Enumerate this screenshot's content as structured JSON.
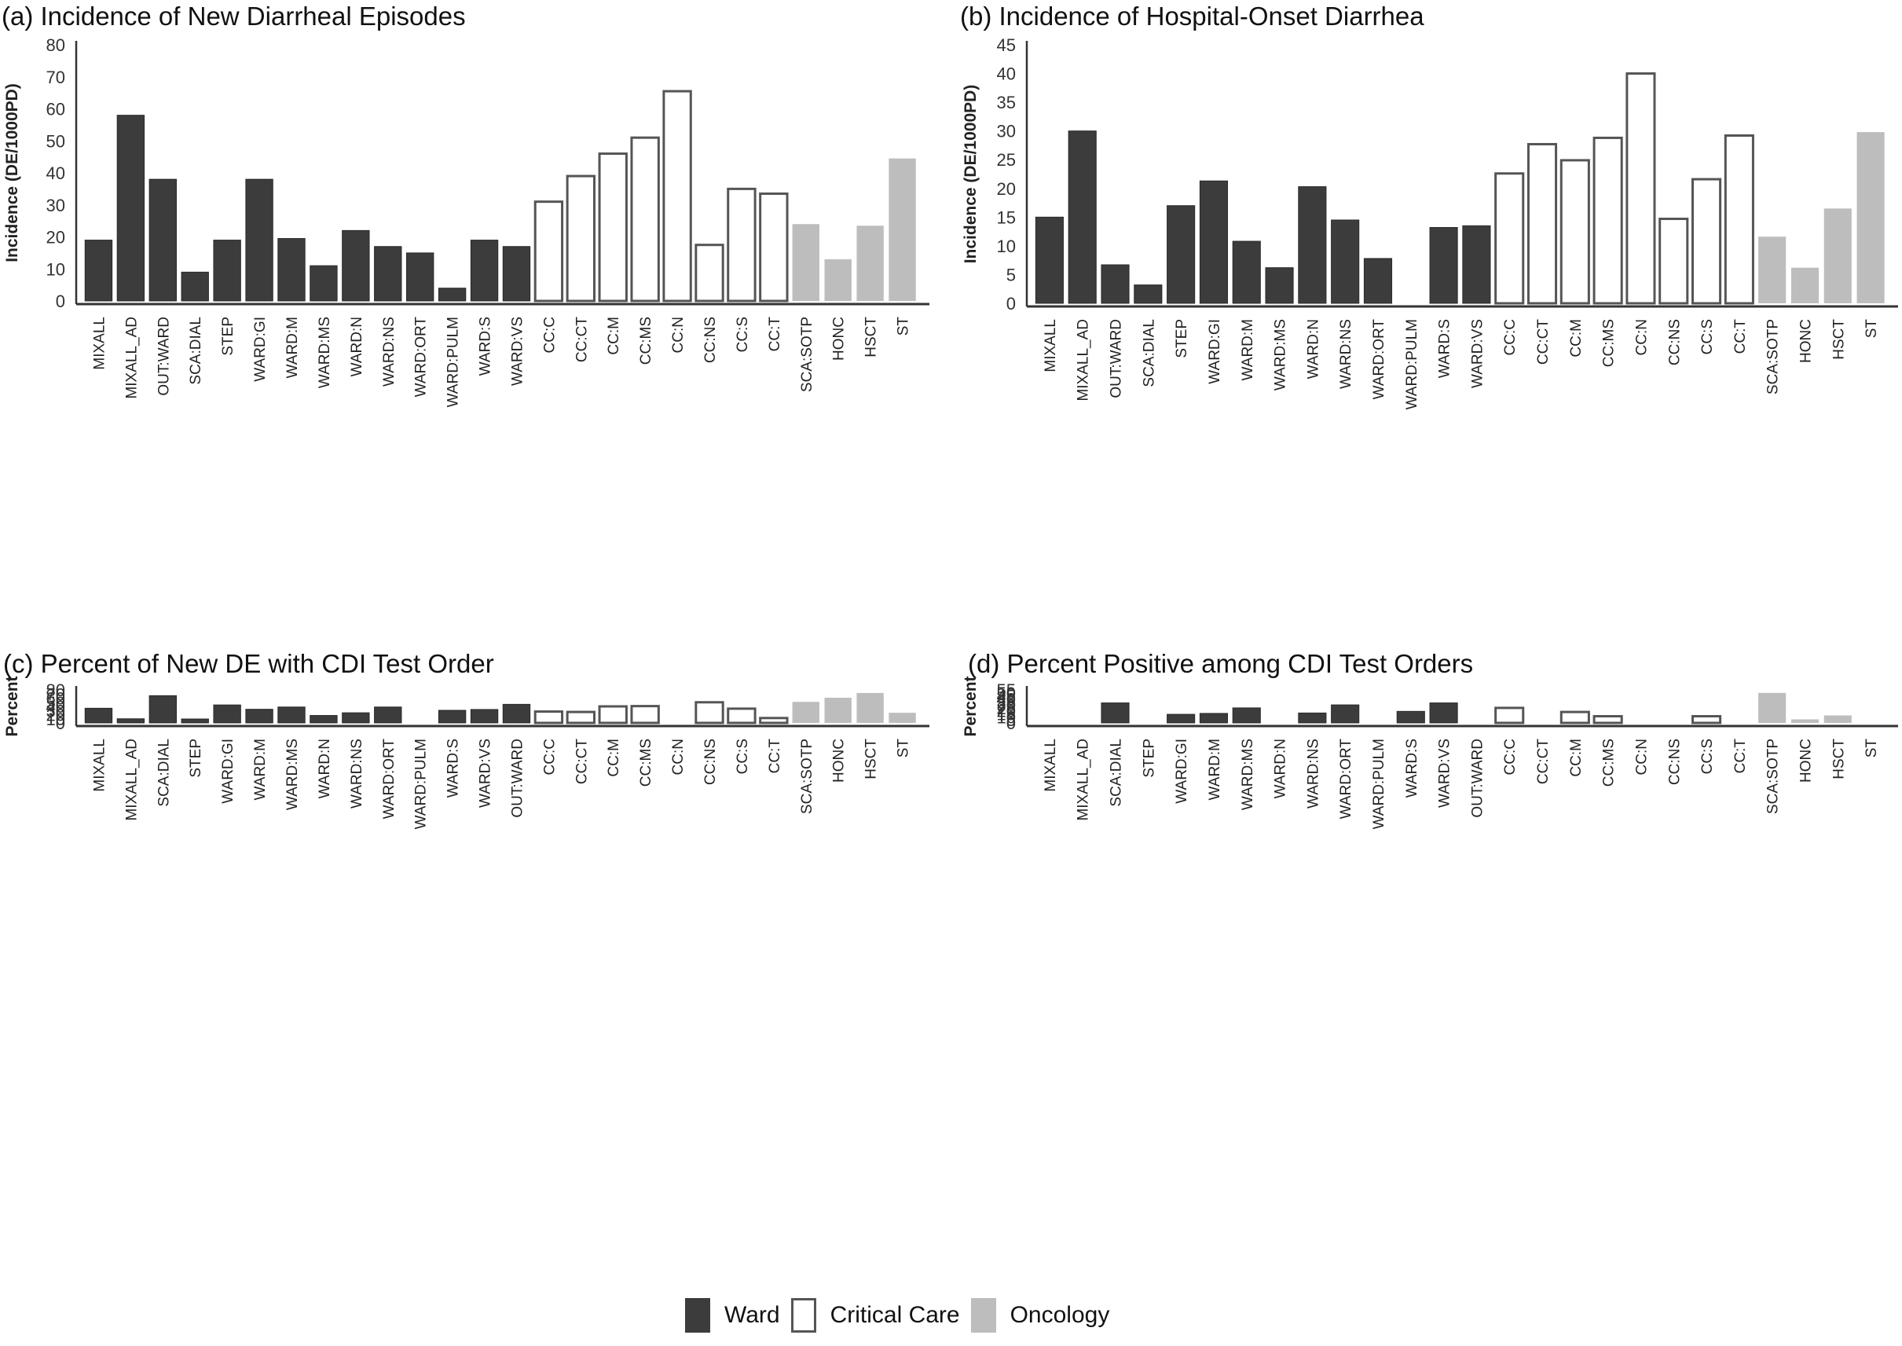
{
  "legend": [
    {
      "label": "Ward",
      "group": "ward"
    },
    {
      "label": "Critical Care",
      "group": "cc"
    },
    {
      "label": "Oncology",
      "group": "onc"
    }
  ],
  "colors": {
    "ward": "#3c3c3c",
    "cc": "#ffffff",
    "cc_stroke": "#555555",
    "onc": "#bdbdbd",
    "axis": "#333333"
  },
  "chart_data": [
    {
      "id": "a",
      "type": "bar",
      "title": "(a) Incidence of New Diarrheal Episodes",
      "xlabel": "",
      "ylabel": "Incidence (DE/1000PD)",
      "ylim": [
        0,
        80
      ],
      "yticks": [
        0,
        10,
        20,
        30,
        40,
        50,
        60,
        70,
        80
      ],
      "grid": false,
      "categories": [
        "MIXALL",
        "MIXALL_AD",
        "OUT:WARD",
        "SCA:DIAL",
        "STEP",
        "WARD:GI",
        "WARD:M",
        "WARD:MS",
        "WARD:N",
        "WARD:NS",
        "WARD:ORT",
        "WARD:PULM",
        "WARD:S",
        "WARD:VS",
        "CC:C",
        "CC:CT",
        "CC:M",
        "CC:MS",
        "CC:N",
        "CC:NS",
        "CC:S",
        "CC:T",
        "SCA:SOTP",
        "HONC",
        "HSCT",
        "ST"
      ],
      "groups": [
        "ward",
        "ward",
        "ward",
        "ward",
        "ward",
        "ward",
        "ward",
        "ward",
        "ward",
        "ward",
        "ward",
        "ward",
        "ward",
        "ward",
        "cc",
        "cc",
        "cc",
        "cc",
        "cc",
        "cc",
        "cc",
        "cc",
        "onc",
        "onc",
        "onc",
        "onc"
      ],
      "values": [
        19,
        58,
        38,
        9,
        19,
        38,
        19.5,
        11,
        22,
        17,
        15,
        4,
        19,
        17,
        31,
        39,
        46,
        51,
        65.5,
        17.5,
        35,
        33.5,
        24,
        13,
        23.5,
        44.5
      ]
    },
    {
      "id": "b",
      "type": "bar",
      "title": "(b) Incidence of Hospital-Onset Diarrhea",
      "xlabel": "",
      "ylabel": "Incidence (DE/1000PD)",
      "ylim": [
        0,
        45
      ],
      "yticks": [
        0,
        5,
        10,
        15,
        20,
        25,
        30,
        35,
        40,
        45
      ],
      "grid": false,
      "categories": [
        "MIXALL",
        "MIXALL_AD",
        "OUT:WARD",
        "SCA:DIAL",
        "STEP",
        "WARD:GI",
        "WARD:M",
        "WARD:MS",
        "WARD:N",
        "WARD:NS",
        "WARD:ORT",
        "WARD:PULM",
        "WARD:S",
        "WARD:VS",
        "CC:C",
        "CC:CT",
        "CC:M",
        "CC:MS",
        "CC:N",
        "CC:NS",
        "CC:S",
        "CC:T",
        "SCA:SOTP",
        "HONC",
        "HSCT",
        "ST"
      ],
      "groups": [
        "ward",
        "ward",
        "ward",
        "ward",
        "ward",
        "ward",
        "ward",
        "ward",
        "ward",
        "ward",
        "ward",
        "ward",
        "ward",
        "ward",
        "cc",
        "cc",
        "cc",
        "cc",
        "cc",
        "cc",
        "cc",
        "cc",
        "onc",
        "onc",
        "onc",
        "onc"
      ],
      "values": [
        15,
        30,
        6.7,
        3.2,
        17,
        21.3,
        10.8,
        6.2,
        20.3,
        14.5,
        7.8,
        0,
        13.2,
        13.5,
        22.6,
        27.7,
        24.9,
        28.8,
        40,
        14.7,
        21.6,
        29.2,
        11.6,
        6.2,
        16.5,
        29.8
      ]
    },
    {
      "id": "c",
      "type": "bar",
      "title": "(c) Percent of New DE with CDI Test Order",
      "xlabel": "",
      "ylabel": "Percent",
      "ylim": [
        0,
        80
      ],
      "yticks": [
        0,
        10,
        20,
        30,
        40,
        50,
        60,
        70,
        80
      ],
      "grid": false,
      "categories": [
        "MIXALL",
        "MIXALL_AD",
        "SCA:DIAL",
        "STEP",
        "WARD:GI",
        "WARD:M",
        "WARD:MS",
        "WARD:N",
        "WARD:NS",
        "WARD:ORT",
        "WARD:PULM",
        "WARD:S",
        "WARD:VS",
        "OUT:WARD",
        "CC:C",
        "CC:CT",
        "CC:M",
        "CC:MS",
        "CC:N",
        "CC:NS",
        "CC:S",
        "CC:T",
        "SCA:SOTP",
        "HONC",
        "HSCT",
        "ST"
      ],
      "groups": [
        "ward",
        "ward",
        "ward",
        "ward",
        "ward",
        "ward",
        "ward",
        "ward",
        "ward",
        "ward",
        "ward",
        "ward",
        "ward",
        "ward",
        "cc",
        "cc",
        "cc",
        "cc",
        "cc",
        "cc",
        "cc",
        "cc",
        "onc",
        "onc",
        "onc",
        "onc"
      ],
      "values": [
        35.5,
        10,
        66,
        9.5,
        43.5,
        33,
        38.5,
        18,
        24.5,
        38.5,
        0,
        30.5,
        32.5,
        45,
        27.5,
        26.5,
        40,
        40.7,
        0,
        50,
        34.5,
        11.8,
        51,
        61,
        72.5,
        24.5
      ]
    },
    {
      "id": "d",
      "type": "bar",
      "title": "(d) Percent Positive among CDI Test Orders",
      "xlabel": "",
      "ylabel": "Percent",
      "ylim": [
        0,
        55
      ],
      "yticks": [
        0,
        5,
        10,
        15,
        20,
        25,
        30,
        35,
        40,
        45,
        50,
        55
      ],
      "grid": false,
      "categories": [
        "MIXALL",
        "MIXALL_AD",
        "SCA:DIAL",
        "STEP",
        "WARD:GI",
        "WARD:M",
        "WARD:MS",
        "WARD:N",
        "WARD:NS",
        "WARD:ORT",
        "WARD:PULM",
        "WARD:S",
        "WARD:VS",
        "OUT:WARD",
        "CC:C",
        "CC:CT",
        "CC:M",
        "CC:MS",
        "CC:N",
        "CC:NS",
        "CC:S",
        "CC:T",
        "SCA:SOTP",
        "HONC",
        "HSCT",
        "ST"
      ],
      "groups": [
        "ward",
        "ward",
        "ward",
        "ward",
        "ward",
        "ward",
        "ward",
        "ward",
        "ward",
        "ward",
        "ward",
        "ward",
        "ward",
        "ward",
        "cc",
        "cc",
        "cc",
        "cc",
        "cc",
        "cc",
        "cc",
        "cc",
        "onc",
        "onc",
        "onc",
        "onc"
      ],
      "values": [
        0,
        0,
        33.3,
        0,
        14.3,
        15.8,
        25,
        0,
        16.5,
        30,
        0,
        19.2,
        33.3,
        0,
        25,
        0,
        18.2,
        11.1,
        0,
        0,
        11.1,
        0,
        50,
        5.9,
        12.5,
        0
      ]
    }
  ]
}
